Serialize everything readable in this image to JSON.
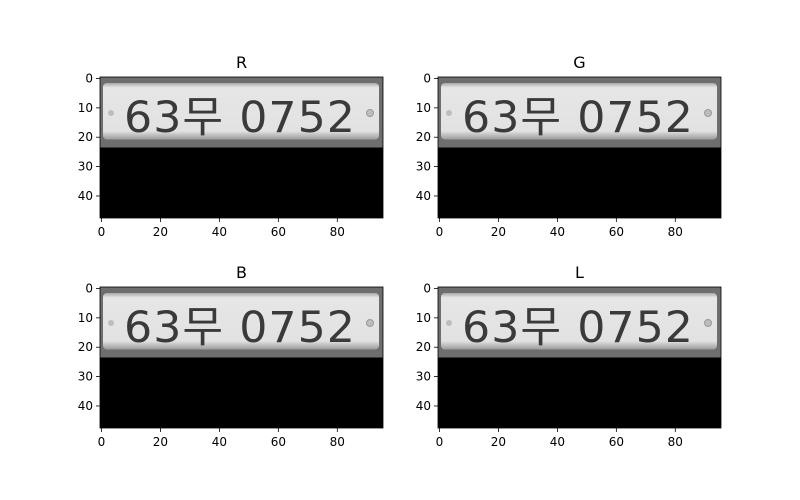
{
  "chart_data": [
    {
      "type": "image",
      "title": "R",
      "plate_text": "63무 0752",
      "xlim": [
        -0.5,
        95.5
      ],
      "ylim": [
        47.5,
        -0.5
      ],
      "xticks": [
        0,
        20,
        40,
        60,
        80
      ],
      "yticks": [
        0,
        10,
        20,
        30,
        40
      ],
      "plate_region_rows": [
        0,
        23
      ],
      "dark_region_rows": [
        24,
        47
      ]
    },
    {
      "type": "image",
      "title": "G",
      "plate_text": "63무 0752",
      "xlim": [
        -0.5,
        95.5
      ],
      "ylim": [
        47.5,
        -0.5
      ],
      "xticks": [
        0,
        20,
        40,
        60,
        80
      ],
      "yticks": [
        0,
        10,
        20,
        30,
        40
      ],
      "plate_region_rows": [
        0,
        23
      ],
      "dark_region_rows": [
        24,
        47
      ]
    },
    {
      "type": "image",
      "title": "B",
      "plate_text": "63무 0752",
      "xlim": [
        -0.5,
        95.5
      ],
      "ylim": [
        47.5,
        -0.5
      ],
      "xticks": [
        0,
        20,
        40,
        60,
        80
      ],
      "yticks": [
        0,
        10,
        20,
        30,
        40
      ],
      "plate_region_rows": [
        0,
        23
      ],
      "dark_region_rows": [
        24,
        47
      ]
    },
    {
      "type": "image",
      "title": "L",
      "plate_text": "63무 0752",
      "xlim": [
        -0.5,
        95.5
      ],
      "ylim": [
        47.5,
        -0.5
      ],
      "xticks": [
        0,
        20,
        40,
        60,
        80
      ],
      "yticks": [
        0,
        10,
        20,
        30,
        40
      ],
      "plate_region_rows": [
        0,
        23
      ],
      "dark_region_rows": [
        24,
        47
      ]
    }
  ]
}
